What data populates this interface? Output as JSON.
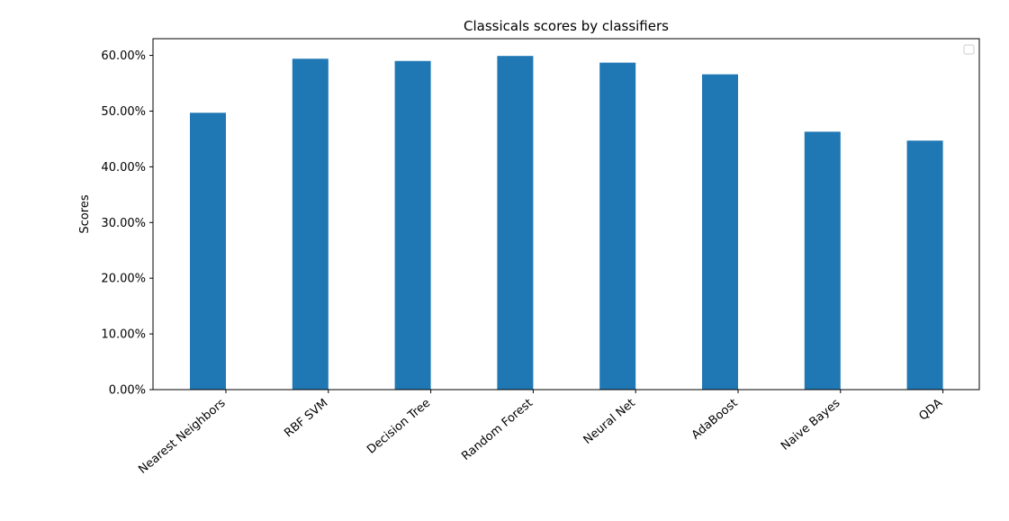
{
  "chart_data": {
    "type": "bar",
    "title": "Classicals scores by classifiers",
    "xlabel": "",
    "ylabel": "Scores",
    "categories": [
      "Nearest Neighbors",
      "RBF SVM",
      "Decision Tree",
      "Random Forest",
      "Neural Net",
      "AdaBoost",
      "Naive Bayes",
      "QDA"
    ],
    "values": [
      0.497,
      0.594,
      0.59,
      0.599,
      0.587,
      0.566,
      0.463,
      0.447
    ],
    "ylim": [
      0,
      0.63
    ],
    "yticks": [
      0,
      0.1,
      0.2,
      0.3,
      0.4,
      0.5,
      0.6
    ],
    "ytick_labels": [
      "0.00%",
      "10.00%",
      "20.00%",
      "30.00%",
      "40.00%",
      "50.00%",
      "60.00%"
    ],
    "grid": false,
    "legend": {
      "position": "top-right",
      "entries": []
    },
    "colors": {
      "bar": "#1f77b4",
      "axis": "#000000",
      "background": "#ffffff"
    }
  }
}
